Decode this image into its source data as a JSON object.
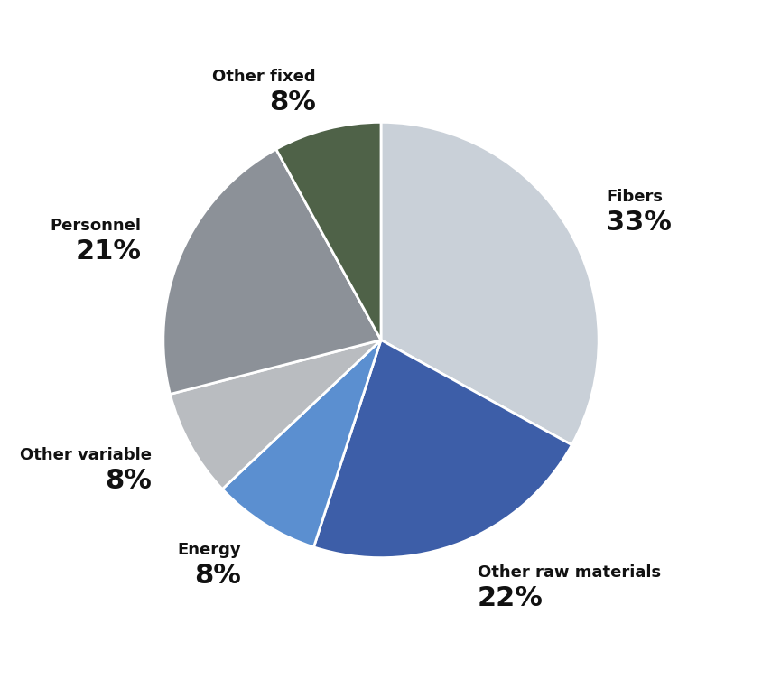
{
  "chart_data": {
    "type": "pie",
    "categories": [
      "Fibers",
      "Other raw materials",
      "Energy",
      "Other variable",
      "Personnel",
      "Other fixed"
    ],
    "values": [
      33,
      22,
      8,
      8,
      21,
      8
    ],
    "value_labels": [
      "33%",
      "22%",
      "8%",
      "8%",
      "21%",
      "8%"
    ],
    "data_labels": true,
    "colors": [
      "#c9d0d8",
      "#3d5ea8",
      "#5b8fd0",
      "#b9bcc0",
      "#8c9198",
      "#4f6248"
    ]
  }
}
